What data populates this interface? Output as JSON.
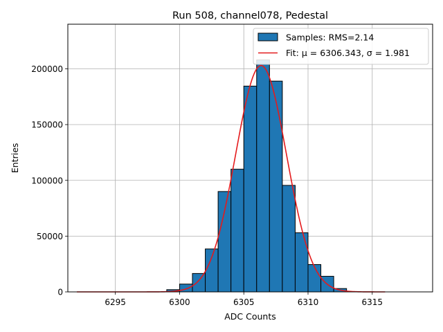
{
  "chart_data": {
    "type": "bar",
    "title": "Run 508, channel078, Pedestal",
    "xlabel": "ADC Counts",
    "ylabel": "Entries",
    "xlim": [
      6291.3,
      6319.7
    ],
    "ylim": [
      0,
      240000
    ],
    "xticks": [
      6295,
      6300,
      6305,
      6310,
      6315
    ],
    "yticks": [
      0,
      50000,
      100000,
      150000,
      200000
    ],
    "grid": true,
    "legend_position": "top-right",
    "histogram": {
      "name": "Samples: RMS=2.14",
      "bin_width": 1,
      "bin_starts": [
        6299,
        6300,
        6301,
        6302,
        6303,
        6304,
        6305,
        6306,
        6307,
        6308,
        6309,
        6310,
        6311,
        6312
      ],
      "values": [
        2000,
        7000,
        16500,
        38500,
        90000,
        110000,
        184500,
        208000,
        189000,
        95500,
        53000,
        24500,
        14000,
        3000
      ],
      "color": "#1f77b4"
    },
    "fit": {
      "name": "Fit: μ = 6306.343, σ = 1.981",
      "mu": 6306.343,
      "sigma": 1.981,
      "amplitude": 203000,
      "x_range": [
        6292,
        6316
      ],
      "color": "#e41a1c"
    }
  }
}
